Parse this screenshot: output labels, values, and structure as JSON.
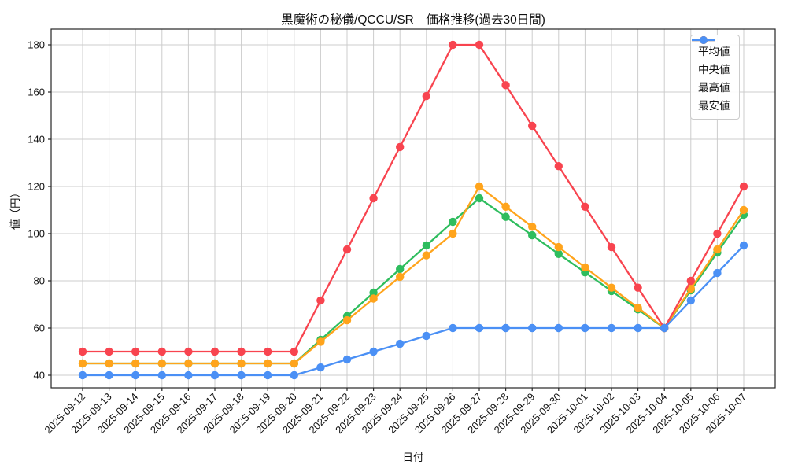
{
  "chart_data": {
    "type": "line",
    "title": "黒魔術の秘儀/QCCU/SR　価格推移(過去30日間)",
    "xlabel": "日付",
    "ylabel": "値（円）",
    "grid": true,
    "legend_position": "upper right",
    "x": [
      "2025-09-12",
      "2025-09-13",
      "2025-09-14",
      "2025-09-15",
      "2025-09-16",
      "2025-09-17",
      "2025-09-18",
      "2025-09-19",
      "2025-09-20",
      "2025-09-21",
      "2025-09-22",
      "2025-09-23",
      "2025-09-24",
      "2025-09-25",
      "2025-09-26",
      "2025-09-27",
      "2025-09-28",
      "2025-09-29",
      "2025-09-30",
      "2025-10-01",
      "2025-10-02",
      "2025-10-03",
      "2025-10-04",
      "2025-10-05",
      "2025-10-06",
      "2025-10-07"
    ],
    "yticks": [
      40,
      60,
      80,
      100,
      120,
      140,
      160,
      180
    ],
    "ylim": [
      33.5,
      186.5
    ],
    "series": [
      {
        "name": "平均値",
        "color": "#2ebd5e",
        "values": [
          45,
          45,
          45,
          45,
          45,
          45,
          45,
          45,
          45,
          55,
          65,
          75,
          85,
          95,
          105,
          115,
          107.1,
          99.3,
          91.4,
          83.6,
          75.7,
          67.9,
          60,
          76,
          92,
          108
        ]
      },
      {
        "name": "中央値",
        "color": "#ffa41c",
        "values": [
          45,
          45,
          45,
          45,
          45,
          45,
          45,
          45,
          45,
          54.2,
          63.3,
          72.5,
          81.7,
          90.8,
          100,
          120,
          111.4,
          102.9,
          94.3,
          85.7,
          77.1,
          68.6,
          60,
          76.7,
          93.3,
          110
        ]
      },
      {
        "name": "最高値",
        "color": "#f8444f",
        "values": [
          50,
          50,
          50,
          50,
          50,
          50,
          50,
          50,
          50,
          71.7,
          93.3,
          115,
          136.7,
          158.3,
          180,
          180,
          162.9,
          145.7,
          128.6,
          111.4,
          94.3,
          77.1,
          60,
          80,
          100,
          120
        ]
      },
      {
        "name": "最安値",
        "color": "#4b90f5",
        "values": [
          40,
          40,
          40,
          40,
          40,
          40,
          40,
          40,
          40,
          43.3,
          46.7,
          50,
          53.3,
          56.7,
          60,
          60,
          60,
          60,
          60,
          60,
          60,
          60,
          60,
          71.7,
          83.3,
          95
        ]
      }
    ]
  }
}
